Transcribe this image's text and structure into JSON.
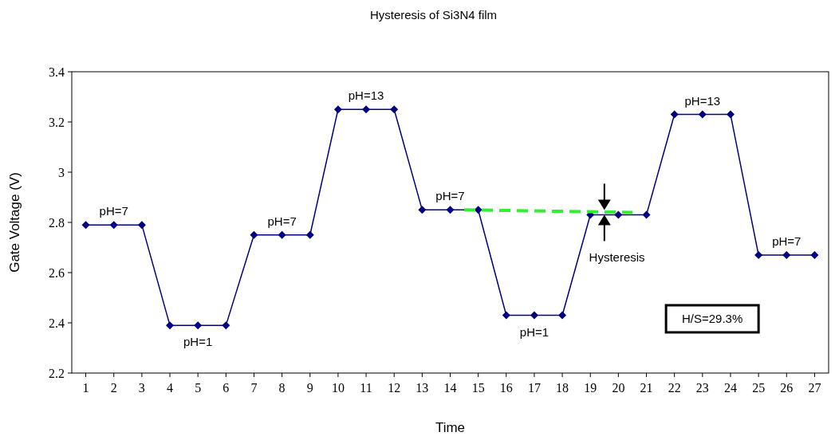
{
  "chart_data": {
    "type": "line",
    "title": "Hysteresis of Si3N4 film",
    "xlabel": "Time",
    "ylabel": "Gate Voltage (V)",
    "x": [
      1,
      2,
      3,
      4,
      5,
      6,
      7,
      8,
      9,
      10,
      11,
      12,
      13,
      14,
      15,
      16,
      17,
      18,
      19,
      20,
      21,
      22,
      23,
      24,
      25,
      26,
      27
    ],
    "xlim": [
      0.5,
      27.5
    ],
    "xticks": [
      1,
      2,
      3,
      4,
      5,
      6,
      7,
      8,
      9,
      10,
      11,
      12,
      13,
      14,
      15,
      16,
      17,
      18,
      19,
      20,
      21,
      22,
      23,
      24,
      25,
      26,
      27
    ],
    "ylim": [
      2.2,
      3.4
    ],
    "yticks": [
      2.2,
      2.4,
      2.6,
      2.8,
      3,
      3.2,
      3.4
    ],
    "grid": false,
    "series": [
      {
        "color": "#000080",
        "marker": "diamond",
        "line_style": "solid",
        "values": [
          2.79,
          2.79,
          2.79,
          2.39,
          2.39,
          2.39,
          2.75,
          2.75,
          2.75,
          3.25,
          3.25,
          3.25,
          2.85,
          2.85,
          2.85,
          2.43,
          2.43,
          2.43,
          2.83,
          2.83,
          2.83,
          3.23,
          3.23,
          3.23,
          2.67,
          2.67,
          2.67
        ]
      },
      {
        "type": "line",
        "color": "#33ee33",
        "marker": "none",
        "line_style": "dashed",
        "x": [
          14.5,
          20.5
        ],
        "values": [
          2.85,
          2.84
        ]
      }
    ],
    "annotations": [
      {
        "text": "pH=7",
        "x": 2,
        "y": 2.79
      },
      {
        "text": "pH=1",
        "x": 5,
        "y": 2.39
      },
      {
        "text": "pH=7",
        "x": 8,
        "y": 2.75
      },
      {
        "text": "pH=13",
        "x": 11,
        "y": 3.25
      },
      {
        "text": "pH=7",
        "x": 14,
        "y": 2.85
      },
      {
        "text": "pH=1",
        "x": 17,
        "y": 2.43
      },
      {
        "text": "pH=13",
        "x": 23,
        "y": 3.23
      },
      {
        "text": "pH=7",
        "x": 26,
        "y": 2.67
      },
      "Hysteresis",
      "H/S=29.3%"
    ]
  }
}
